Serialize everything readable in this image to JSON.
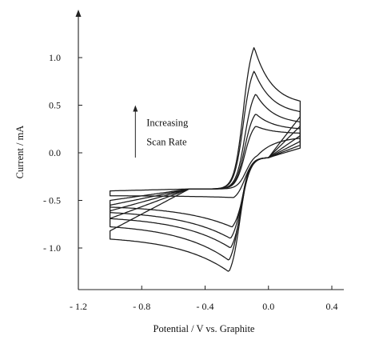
{
  "chart_data": {
    "type": "line",
    "title": "",
    "xlabel": "Potential / V vs. Graphite",
    "ylabel": "Current / mA",
    "xlim": [
      -1.2,
      0.45
    ],
    "ylim": [
      -1.45,
      1.45
    ],
    "x_ticks": [
      {
        "value": -1.2,
        "label": "- 1.2"
      },
      {
        "value": -0.8,
        "label": "- 0.8"
      },
      {
        "value": -0.4,
        "label": "- 0.4"
      },
      {
        "value": 0.0,
        "label": "0.0"
      },
      {
        "value": 0.4,
        "label": "0.4"
      }
    ],
    "y_ticks": [
      {
        "value": 1.0,
        "label": "1.0"
      },
      {
        "value": 0.5,
        "label": "0.5"
      },
      {
        "value": 0.0,
        "label": "0.0"
      },
      {
        "value": -0.5,
        "label": "- 0.5"
      },
      {
        "value": -1.0,
        "label": "- 1.0"
      }
    ],
    "grid": false,
    "legend": "none",
    "annotation": {
      "lines": [
        "Increasing",
        "Scan Rate"
      ],
      "x": -0.77,
      "y_top": 0.28,
      "y_bottom": 0.08,
      "arrow_x": -0.84,
      "arrow_y_from": -0.05,
      "arrow_y_to": 0.5
    },
    "series": [
      {
        "anodic_peak_current": -0.03,
        "anodic_peak_potential": -0.07,
        "cathodic_peak_current": -0.47,
        "cathodic_peak_potential": -0.22,
        "start_current": -0.45,
        "end_current": 0.17
      },
      {
        "anodic_peak_current": 0.28,
        "anodic_peak_potential": -0.08,
        "cathodic_peak_current": -0.78,
        "cathodic_peak_potential": -0.23,
        "start_current": -0.55,
        "end_current": 0.2
      },
      {
        "anodic_peak_current": 0.41,
        "anodic_peak_potential": -0.08,
        "cathodic_peak_current": -0.9,
        "cathodic_peak_potential": -0.24,
        "start_current": -0.6,
        "end_current": 0.24
      },
      {
        "anodic_peak_current": 0.62,
        "anodic_peak_potential": -0.08,
        "cathodic_peak_current": -1.0,
        "cathodic_peak_potential": -0.24,
        "start_current": -0.66,
        "end_current": 0.3
      },
      {
        "anodic_peak_current": 0.86,
        "anodic_peak_potential": -0.09,
        "cathodic_peak_current": -1.13,
        "cathodic_peak_potential": -0.25,
        "start_current": -0.74,
        "end_current": 0.4
      },
      {
        "anodic_peak_current": 1.11,
        "anodic_peak_potential": -0.09,
        "cathodic_peak_current": -1.25,
        "cathodic_peak_potential": -0.25,
        "start_current": -0.87,
        "end_current": 0.5
      }
    ],
    "potential_range": [
      -1.0,
      0.2
    ],
    "color": "#1a1a1a"
  }
}
